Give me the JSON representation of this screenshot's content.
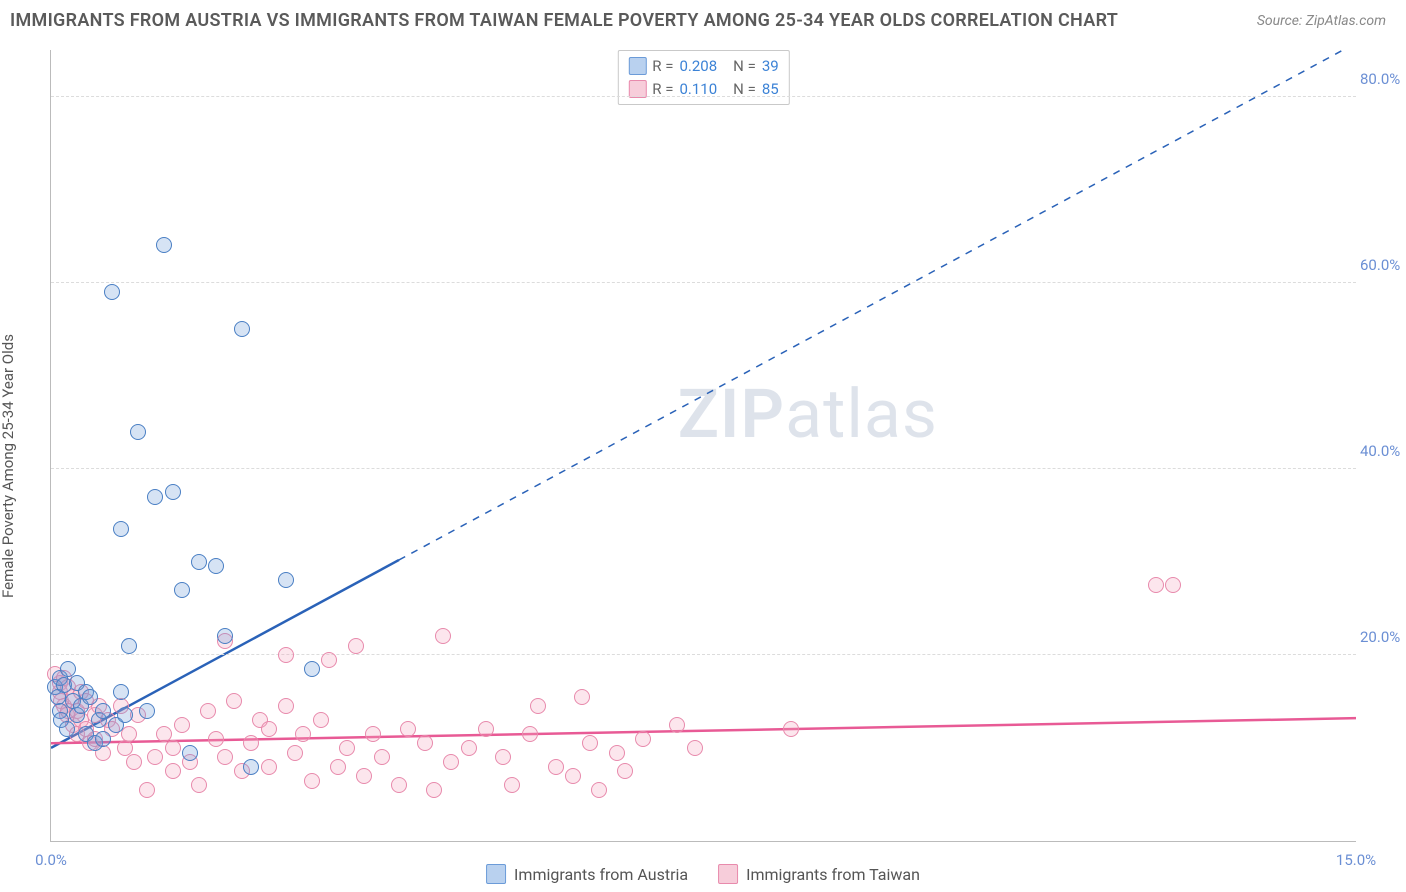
{
  "title": "IMMIGRANTS FROM AUSTRIA VS IMMIGRANTS FROM TAIWAN FEMALE POVERTY AMONG 25-34 YEAR OLDS CORRELATION CHART",
  "source": "Source: ZipAtlas.com",
  "ylabel": "Female Poverty Among 25-34 Year Olds",
  "watermark_zip": "ZIP",
  "watermark_atlas": "atlas",
  "chart": {
    "type": "scatter",
    "xlim": [
      0,
      15
    ],
    "ylim": [
      0,
      85
    ],
    "x_ticks": [
      {
        "v": 0,
        "label": "0.0%"
      },
      {
        "v": 15,
        "label": "15.0%"
      }
    ],
    "y_ticks": [
      {
        "v": 20,
        "label": "20.0%"
      },
      {
        "v": 40,
        "label": "40.0%"
      },
      {
        "v": 60,
        "label": "60.0%"
      },
      {
        "v": 80,
        "label": "80.0%"
      }
    ],
    "grid_color": "#dcdcdc",
    "background_color": "#ffffff",
    "marker_radius": 8,
    "marker_fill_opacity": 0.28,
    "marker_stroke_width": 1.2,
    "series": [
      {
        "name": "Immigrants from Austria",
        "color": "#6b9bd8",
        "stroke": "#4a7fc4",
        "R": "0.208",
        "N": "39",
        "trend": {
          "slope": 5.05,
          "intercept": 10.0,
          "line_color": "#2a62b8",
          "line_width": 2.5,
          "dash_after_x": 4.0
        },
        "points": [
          [
            0.05,
            16.5
          ],
          [
            0.08,
            15.5
          ],
          [
            0.1,
            14.0
          ],
          [
            0.1,
            17.5
          ],
          [
            0.12,
            13.0
          ],
          [
            0.15,
            16.8
          ],
          [
            0.18,
            12.0
          ],
          [
            0.2,
            18.5
          ],
          [
            0.25,
            15.0
          ],
          [
            0.3,
            13.5
          ],
          [
            0.3,
            17.0
          ],
          [
            0.35,
            14.5
          ],
          [
            0.4,
            11.5
          ],
          [
            0.4,
            16.0
          ],
          [
            0.45,
            15.5
          ],
          [
            0.5,
            10.5
          ],
          [
            0.55,
            13.0
          ],
          [
            0.6,
            14.0
          ],
          [
            0.6,
            11.0
          ],
          [
            0.7,
            59.0
          ],
          [
            0.75,
            12.5
          ],
          [
            0.8,
            33.5
          ],
          [
            0.8,
            16.0
          ],
          [
            0.85,
            13.5
          ],
          [
            0.9,
            21.0
          ],
          [
            1.0,
            44.0
          ],
          [
            1.1,
            14.0
          ],
          [
            1.2,
            37.0
          ],
          [
            1.3,
            64.0
          ],
          [
            1.4,
            37.5
          ],
          [
            1.5,
            27.0
          ],
          [
            1.6,
            9.5
          ],
          [
            1.7,
            30.0
          ],
          [
            1.9,
            29.5
          ],
          [
            2.0,
            22.0
          ],
          [
            2.2,
            55.0
          ],
          [
            2.3,
            8.0
          ],
          [
            2.7,
            28.0
          ],
          [
            3.0,
            18.5
          ]
        ]
      },
      {
        "name": "Immigrants from Taiwan",
        "color": "#f4a6c0",
        "stroke": "#e88aac",
        "R": "0.110",
        "N": "85",
        "trend": {
          "slope": 0.18,
          "intercept": 10.5,
          "line_color": "#e85a95",
          "line_width": 2.5
        },
        "points": [
          [
            0.05,
            18.0
          ],
          [
            0.1,
            17.0
          ],
          [
            0.1,
            16.0
          ],
          [
            0.12,
            15.0
          ],
          [
            0.15,
            14.5
          ],
          [
            0.15,
            17.5
          ],
          [
            0.18,
            13.5
          ],
          [
            0.2,
            14.0
          ],
          [
            0.2,
            16.5
          ],
          [
            0.25,
            12.5
          ],
          [
            0.25,
            15.5
          ],
          [
            0.3,
            11.5
          ],
          [
            0.3,
            14.0
          ],
          [
            0.35,
            13.0
          ],
          [
            0.35,
            16.0
          ],
          [
            0.4,
            12.0
          ],
          [
            0.4,
            15.0
          ],
          [
            0.45,
            10.5
          ],
          [
            0.5,
            13.5
          ],
          [
            0.5,
            11.0
          ],
          [
            0.55,
            14.5
          ],
          [
            0.6,
            9.5
          ],
          [
            0.65,
            13.0
          ],
          [
            0.7,
            12.0
          ],
          [
            0.8,
            14.5
          ],
          [
            0.85,
            10.0
          ],
          [
            0.9,
            11.5
          ],
          [
            0.95,
            8.5
          ],
          [
            1.0,
            13.5
          ],
          [
            1.1,
            5.5
          ],
          [
            1.2,
            9.0
          ],
          [
            1.3,
            11.5
          ],
          [
            1.4,
            7.5
          ],
          [
            1.4,
            10.0
          ],
          [
            1.5,
            12.5
          ],
          [
            1.6,
            8.5
          ],
          [
            1.7,
            6.0
          ],
          [
            1.8,
            14.0
          ],
          [
            1.9,
            11.0
          ],
          [
            2.0,
            21.5
          ],
          [
            2.0,
            9.0
          ],
          [
            2.1,
            15.0
          ],
          [
            2.2,
            7.5
          ],
          [
            2.3,
            10.5
          ],
          [
            2.4,
            13.0
          ],
          [
            2.5,
            8.0
          ],
          [
            2.5,
            12.0
          ],
          [
            2.7,
            20.0
          ],
          [
            2.7,
            14.5
          ],
          [
            2.8,
            9.5
          ],
          [
            2.9,
            11.5
          ],
          [
            3.0,
            6.5
          ],
          [
            3.1,
            13.0
          ],
          [
            3.2,
            19.5
          ],
          [
            3.3,
            8.0
          ],
          [
            3.4,
            10.0
          ],
          [
            3.5,
            21.0
          ],
          [
            3.6,
            7.0
          ],
          [
            3.7,
            11.5
          ],
          [
            3.8,
            9.0
          ],
          [
            4.0,
            6.0
          ],
          [
            4.1,
            12.0
          ],
          [
            4.3,
            10.5
          ],
          [
            4.4,
            5.5
          ],
          [
            4.5,
            22.0
          ],
          [
            4.6,
            8.5
          ],
          [
            4.8,
            10.0
          ],
          [
            5.0,
            12.0
          ],
          [
            5.2,
            9.0
          ],
          [
            5.3,
            6.0
          ],
          [
            5.5,
            11.5
          ],
          [
            5.6,
            14.5
          ],
          [
            5.8,
            8.0
          ],
          [
            6.0,
            7.0
          ],
          [
            6.1,
            15.5
          ],
          [
            6.2,
            10.5
          ],
          [
            6.3,
            5.5
          ],
          [
            6.5,
            9.5
          ],
          [
            6.6,
            7.5
          ],
          [
            6.8,
            11.0
          ],
          [
            7.2,
            12.5
          ],
          [
            7.4,
            10.0
          ],
          [
            8.5,
            12.0
          ],
          [
            12.7,
            27.5
          ],
          [
            12.9,
            27.5
          ]
        ]
      }
    ]
  },
  "bottom_legend": [
    {
      "label": "Immigrants from Austria",
      "fill": "#b9d1ef",
      "border": "#6b9bd8"
    },
    {
      "label": "Immigrants from Taiwan",
      "fill": "#f7cdda",
      "border": "#e88aac"
    }
  ],
  "r_legend_swatches": [
    {
      "fill": "#b9d1ef",
      "border": "#6b9bd8"
    },
    {
      "fill": "#f7cdda",
      "border": "#e88aac"
    }
  ]
}
